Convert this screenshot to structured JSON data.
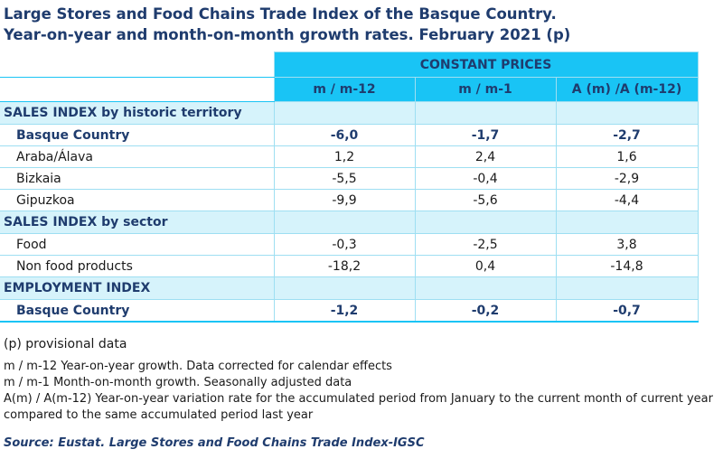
{
  "header": {
    "title_lines": [
      "Large Stores and Food Chains Trade Index of the Basque Country.",
      "Year-on-year and month-on-month growth rates. February 2021 (p)"
    ]
  },
  "table": {
    "group_header": "CONSTANT PRICES",
    "columns": [
      "m / m-12",
      "m / m-1",
      "A (m) /A (m-12)"
    ],
    "sections": [
      {
        "title": "SALES INDEX by historic territory",
        "rows": [
          {
            "label": "Basque Country",
            "bold": true,
            "values": [
              "-6,0",
              "-1,7",
              "-2,7"
            ]
          },
          {
            "label": "Araba/Álava",
            "bold": false,
            "values": [
              "1,2",
              "2,4",
              "1,6"
            ]
          },
          {
            "label": "Bizkaia",
            "bold": false,
            "values": [
              "-5,5",
              "-0,4",
              "-2,9"
            ]
          },
          {
            "label": "Gipuzkoa",
            "bold": false,
            "values": [
              "-9,9",
              "-5,6",
              "-4,4"
            ]
          }
        ]
      },
      {
        "title": "SALES INDEX by sector",
        "rows": [
          {
            "label": "Food",
            "bold": false,
            "values": [
              "-0,3",
              "-2,5",
              "3,8"
            ]
          },
          {
            "label": "Non food products",
            "bold": false,
            "values": [
              "-18,2",
              "0,4",
              "-14,8"
            ]
          }
        ]
      },
      {
        "title": "EMPLOYMENT INDEX",
        "rows": [
          {
            "label": "Basque Country",
            "bold": true,
            "values": [
              "-1,2",
              "-0,2",
              "-0,7"
            ]
          }
        ]
      }
    ]
  },
  "notes": [
    "(p) provisional data",
    "m / m-12 Year-on-year growth. Data corrected for calendar effects",
    "m / m-1 Month-on-month growth. Seasonally adjusted data",
    "A(m) / A(m-12) Year-on-year variation rate for the accumulated period from January to the current month of current year compared to the same accumulated period last year"
  ],
  "source": "Source: Eustat. Large Stores and Food Chains Trade Index-IGSC"
}
